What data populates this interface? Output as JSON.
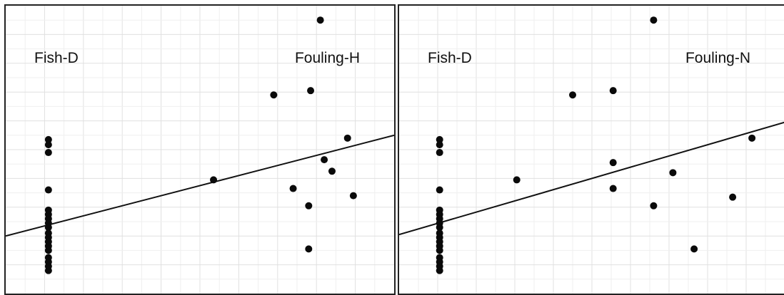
{
  "chart_data": [
    {
      "type": "scatter",
      "title": "",
      "xlabel": "",
      "ylabel": "",
      "xlim": [
        0,
        100
      ],
      "ylim": [
        0,
        100
      ],
      "grid": true,
      "labels": {
        "left": "Fish-D",
        "right": "Fouling-H"
      },
      "points": [
        {
          "x": 11,
          "y": 53.5
        },
        {
          "x": 11,
          "y": 51.7
        },
        {
          "x": 11,
          "y": 49.0
        },
        {
          "x": 11,
          "y": 36.0
        },
        {
          "x": 11,
          "y": 29.0
        },
        {
          "x": 11,
          "y": 27.5
        },
        {
          "x": 11,
          "y": 26.0
        },
        {
          "x": 11,
          "y": 24.5
        },
        {
          "x": 11,
          "y": 23.0
        },
        {
          "x": 11,
          "y": 21.0
        },
        {
          "x": 11,
          "y": 19.5
        },
        {
          "x": 11,
          "y": 18.0
        },
        {
          "x": 11,
          "y": 16.5
        },
        {
          "x": 11,
          "y": 15.0
        },
        {
          "x": 11,
          "y": 12.5
        },
        {
          "x": 11,
          "y": 11.0
        },
        {
          "x": 11,
          "y": 9.5
        },
        {
          "x": 11,
          "y": 8.0
        },
        {
          "x": 53.5,
          "y": 39.5
        },
        {
          "x": 81,
          "y": 95.0
        },
        {
          "x": 69,
          "y": 69.0
        },
        {
          "x": 78.5,
          "y": 70.5
        },
        {
          "x": 88,
          "y": 54.0
        },
        {
          "x": 82,
          "y": 46.5
        },
        {
          "x": 84,
          "y": 42.5
        },
        {
          "x": 74,
          "y": 36.5
        },
        {
          "x": 89.5,
          "y": 34.0
        },
        {
          "x": 78,
          "y": 30.5
        },
        {
          "x": 78,
          "y": 15.5
        }
      ],
      "regression": {
        "x": [
          0,
          100
        ],
        "y": [
          20.0,
          55.0
        ]
      }
    },
    {
      "type": "scatter",
      "title": "",
      "xlabel": "",
      "ylabel": "",
      "xlim": [
        0,
        100
      ],
      "ylim": [
        0,
        100
      ],
      "grid": true,
      "labels": {
        "left": "Fish-D",
        "right": "Fouling-N"
      },
      "points": [
        {
          "x": 10.5,
          "y": 53.5
        },
        {
          "x": 10.5,
          "y": 51.7
        },
        {
          "x": 10.5,
          "y": 49.0
        },
        {
          "x": 10.5,
          "y": 36.0
        },
        {
          "x": 10.5,
          "y": 29.0
        },
        {
          "x": 10.5,
          "y": 27.5
        },
        {
          "x": 10.5,
          "y": 26.0
        },
        {
          "x": 10.5,
          "y": 24.5
        },
        {
          "x": 10.5,
          "y": 23.0
        },
        {
          "x": 10.5,
          "y": 21.0
        },
        {
          "x": 10.5,
          "y": 19.5
        },
        {
          "x": 10.5,
          "y": 18.0
        },
        {
          "x": 10.5,
          "y": 16.5
        },
        {
          "x": 10.5,
          "y": 15.0
        },
        {
          "x": 10.5,
          "y": 12.5
        },
        {
          "x": 10.5,
          "y": 11.0
        },
        {
          "x": 10.5,
          "y": 9.5
        },
        {
          "x": 10.5,
          "y": 8.0
        },
        {
          "x": 30.5,
          "y": 39.5
        },
        {
          "x": 66,
          "y": 95.0
        },
        {
          "x": 45,
          "y": 69.0
        },
        {
          "x": 55.5,
          "y": 70.5
        },
        {
          "x": 91.5,
          "y": 54.0
        },
        {
          "x": 55.5,
          "y": 45.5
        },
        {
          "x": 71,
          "y": 42.0
        },
        {
          "x": 55.5,
          "y": 36.5
        },
        {
          "x": 86.5,
          "y": 33.5
        },
        {
          "x": 66,
          "y": 30.5
        },
        {
          "x": 76.5,
          "y": 15.5
        }
      ],
      "regression": {
        "x": [
          0,
          100
        ],
        "y": [
          20.5,
          59.5
        ]
      }
    }
  ]
}
